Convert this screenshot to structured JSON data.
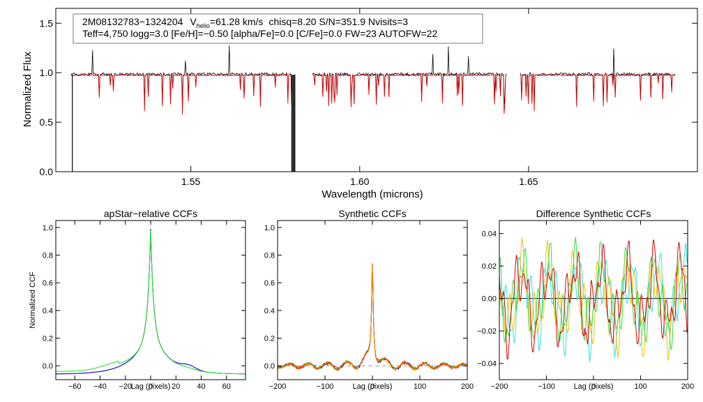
{
  "colors": {
    "observed": "#000000",
    "model": "#d40000",
    "blue": "#0000c8",
    "green": "#33dd33",
    "cyan": "#33e0e0",
    "yellow": "#f0c000",
    "orange": "#ff8800",
    "red": "#dd0000"
  },
  "chart_data": [
    {
      "id": "spectrum",
      "type": "line",
      "annotation": {
        "star_id": "2M08132783−1324204",
        "vhelio_label": "V",
        "vhelio_sub": "helio",
        "vhelio_value": "=61.28 km/s",
        "stats": "chisq=8.20  S/N=351.9  Nvisits=3",
        "params": "Teff=4,750 logg=3.0 [Fe/H]=−0.50 [alpha/Fe]=0.0 [C/Fe]=0.0 FW=23 AUTOFW=22"
      },
      "xlabel": "Wavelength (microns)",
      "ylabel": "Normalized Flux",
      "xlim": [
        1.51,
        1.7
      ],
      "ylim": [
        0.0,
        1.65
      ],
      "xticks": [
        1.55,
        1.6,
        1.65
      ],
      "xtick_labels": [
        "1.55",
        "1.60",
        "1.65"
      ],
      "yticks": [
        0.0,
        0.5,
        1.0,
        1.5
      ],
      "ytick_labels": [
        "0.0",
        "0.5",
        "1.0",
        "1.5"
      ],
      "chips": [
        [
          1.5145,
          1.58
        ],
        [
          1.586,
          1.6435
        ],
        [
          1.6475,
          1.6935
        ]
      ],
      "series": [
        {
          "name": "observed",
          "color_key": "observed",
          "continuum": 0.98
        },
        {
          "name": "synthetic",
          "color_key": "model",
          "continuum": 0.97
        }
      ]
    },
    {
      "id": "apstar_ccf",
      "type": "line",
      "title": "apStar−relative CCFs",
      "xlabel": "Lag (pixels)",
      "ylabel": "Normalized CCF",
      "xlim": [
        -75,
        75
      ],
      "ylim": [
        -0.1,
        1.05
      ],
      "xticks": [
        -60,
        -40,
        -20,
        0,
        20,
        40,
        60
      ],
      "xtick_labels": [
        "−60",
        "−40",
        "−20",
        "0",
        "20",
        "40",
        "60"
      ],
      "yticks": [
        0.0,
        0.2,
        0.4,
        0.6,
        0.8,
        1.0
      ],
      "ytick_labels": [
        "0.0",
        "0.2",
        "0.4",
        "0.6",
        "0.8",
        "1.0"
      ],
      "series": [
        {
          "name": "visit 1",
          "color_key": "blue",
          "peak": 1.0
        },
        {
          "name": "visit 2",
          "color_key": "green",
          "peak": 0.99
        }
      ]
    },
    {
      "id": "synthetic_ccf",
      "type": "line",
      "title": "Synthetic CCFs",
      "xlabel": "Lag (pixels)",
      "xlim": [
        -200,
        200
      ],
      "ylim": [
        -0.1,
        1.05
      ],
      "xticks": [
        -200,
        -100,
        0,
        100,
        200
      ],
      "xtick_labels": [
        "−200",
        "−100",
        "0",
        "100",
        "200"
      ],
      "yticks": [
        0.0,
        0.2,
        0.4,
        0.6,
        0.8,
        1.0
      ],
      "ytick_labels": [
        "0.0",
        "0.2",
        "0.4",
        "0.6",
        "0.8",
        "1.0"
      ],
      "zero_line": true,
      "series": [
        {
          "name": "visit 1",
          "color_key": "blue",
          "peak": 1.0
        },
        {
          "name": "visit 2",
          "color_key": "green",
          "peak": 1.0
        },
        {
          "name": "visit 3",
          "color_key": "red",
          "peak": 1.0
        },
        {
          "name": "visit 4",
          "color_key": "orange",
          "peak": 1.0
        }
      ]
    },
    {
      "id": "difference_ccf",
      "type": "line",
      "title": "Difference Synthetic CCFs",
      "xlabel": "Lag (pixels)",
      "xlim": [
        -200,
        200
      ],
      "ylim": [
        -0.05,
        0.048
      ],
      "xticks": [
        -200,
        -100,
        0,
        100,
        200
      ],
      "xtick_labels": [
        "−200",
        "−100",
        "0",
        "100",
        "200"
      ],
      "yticks": [
        -0.04,
        -0.02,
        0.0,
        0.02,
        0.04
      ],
      "ytick_labels": [
        "−0.04",
        "−0.02",
        "0.00",
        "0.02",
        "0.04"
      ],
      "zero_line": true,
      "series": [
        {
          "name": "cyan",
          "color_key": "cyan"
        },
        {
          "name": "yellow",
          "color_key": "yellow"
        },
        {
          "name": "green",
          "color_key": "green"
        },
        {
          "name": "red",
          "color_key": "red"
        }
      ]
    }
  ]
}
